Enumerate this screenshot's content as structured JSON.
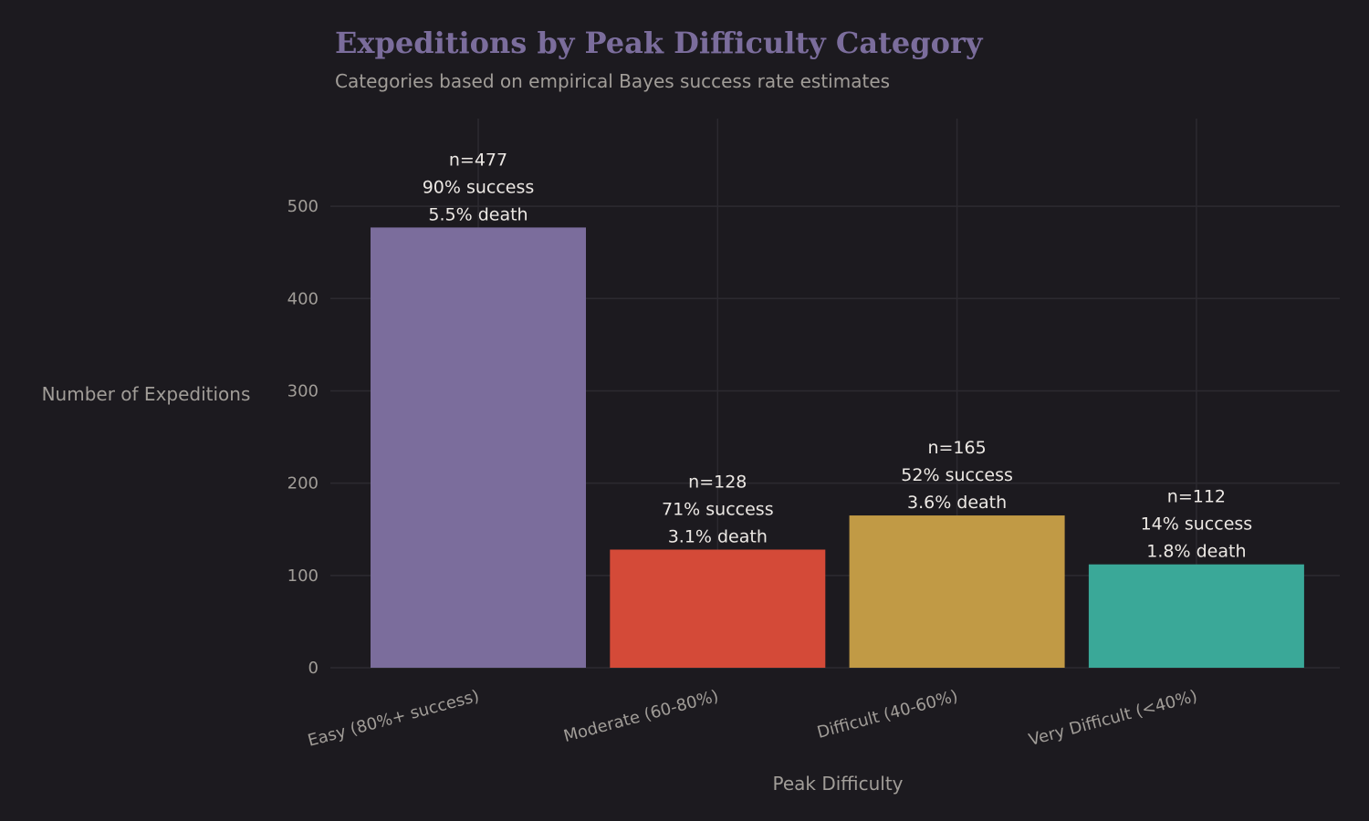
{
  "chart_data": {
    "type": "bar",
    "title": "Expeditions by Peak Difficulty Category",
    "subtitle": "Categories based on empirical Bayes success rate estimates",
    "xlabel": "Peak Difficulty",
    "ylabel": "Number of Expeditions",
    "categories": [
      "Easy (80%+ success)",
      "Moderate (60-80%)",
      "Difficult (40-60%)",
      "Very Difficult (<40%)"
    ],
    "values": [
      477,
      128,
      165,
      112
    ],
    "data_labels": [
      [
        "n=477",
        "90% success",
        "5.5% death"
      ],
      [
        "n=128",
        "71% success",
        "3.1% death"
      ],
      [
        "n=165",
        "52% success",
        "3.6% death"
      ],
      [
        "n=112",
        "14% success",
        "1.8% death"
      ]
    ],
    "colors": [
      "#7b6d9c",
      "#d44a38",
      "#c19a45",
      "#3aa898"
    ],
    "yticks": [
      0,
      100,
      200,
      300,
      400,
      500
    ],
    "ylim": [
      0,
      595
    ],
    "grid": true,
    "legend": "none"
  },
  "theme": {
    "background": "#1c1a1f",
    "title_color": "#7b6d9c",
    "text_color": "#a19d98"
  }
}
